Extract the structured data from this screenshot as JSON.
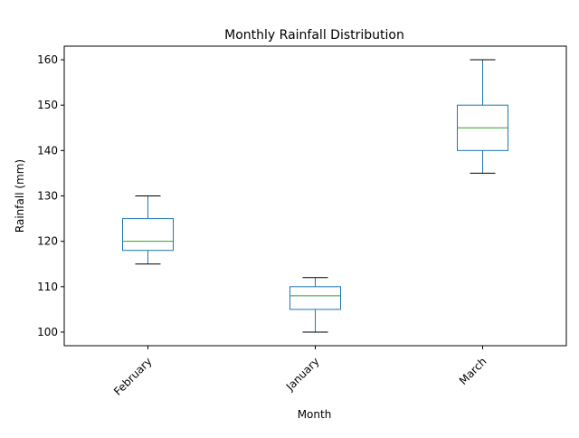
{
  "chart_data": {
    "type": "box",
    "title": "Monthly Rainfall Distribution",
    "xlabel": "Month",
    "ylabel": "Rainfall (mm)",
    "categories": [
      "February",
      "January",
      "March"
    ],
    "boxes": [
      {
        "category": "February",
        "whisker_low": 115,
        "q1": 118,
        "median": 120,
        "q3": 125,
        "whisker_high": 130
      },
      {
        "category": "January",
        "whisker_low": 100,
        "q1": 105,
        "median": 108,
        "q3": 110,
        "whisker_high": 112
      },
      {
        "category": "March",
        "whisker_low": 135,
        "q1": 140,
        "median": 145,
        "q3": 150,
        "whisker_high": 160
      }
    ],
    "yticks": [
      100,
      110,
      120,
      130,
      140,
      150,
      160
    ],
    "ylim": [
      97,
      163
    ],
    "xtick_rotation": 45,
    "grid": false,
    "colors": {
      "box": "#1f77b4",
      "median": "#2ca02c",
      "cap": "#000000",
      "axes": "#000000"
    }
  }
}
